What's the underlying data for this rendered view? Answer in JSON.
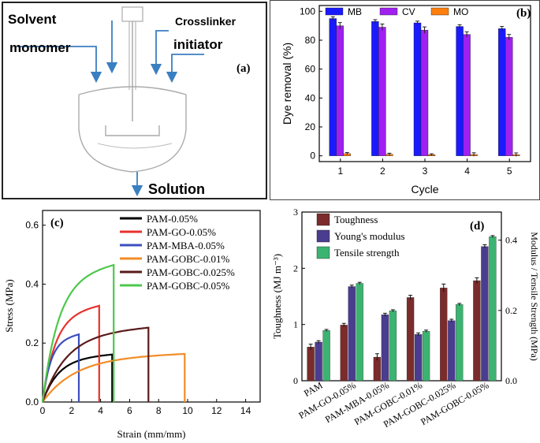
{
  "panel_a": {
    "label": "(a)",
    "solvent": "Solvent",
    "crosslinker": "Crosslinker",
    "monomer": "monomer",
    "initiator": "initiator",
    "solution": "Solution"
  },
  "chart_data": [
    {
      "panel": "(b)",
      "type": "bar",
      "title": "",
      "xlabel": "Cycle",
      "ylabel": "Dye removal (%)",
      "categories": [
        "1",
        "2",
        "3",
        "4",
        "5"
      ],
      "ylim": [
        -4,
        104
      ],
      "yticks": [
        0,
        20,
        40,
        60,
        80,
        100
      ],
      "legend_position": "top",
      "series": [
        {
          "name": "MB",
          "color": "#1a1aff",
          "values": [
            95,
            93,
            92,
            89.5,
            88
          ],
          "errors": [
            1.2,
            1.2,
            1.2,
            1.2,
            1.5
          ]
        },
        {
          "name": "CV",
          "color": "#a020f0",
          "values": [
            90,
            89,
            87,
            84,
            82
          ],
          "errors": [
            2.2,
            2.2,
            2.2,
            1.8,
            2
          ]
        },
        {
          "name": "MO",
          "color": "#ff7f0e",
          "values": [
            1.5,
            1,
            0.8,
            0.9,
            0.8
          ],
          "errors": [
            0.8,
            0.8,
            0.6,
            1.2,
            1.2
          ]
        }
      ]
    },
    {
      "panel": "(c)",
      "type": "line",
      "title": "",
      "xlabel": "Strain (mm/mm)",
      "ylabel": "Stress (MPa)",
      "xlim": [
        0,
        15
      ],
      "ylim": [
        0,
        0.65
      ],
      "xticks": [
        0,
        2,
        4,
        6,
        8,
        10,
        12,
        14
      ],
      "yticks": [
        0.0,
        0.2,
        0.4,
        0.6
      ],
      "legend_position": "top-right",
      "series": [
        {
          "name": "PAM-0.05%",
          "color": "#000000",
          "break_strain": 4.8,
          "plateau_stress": 0.163
        },
        {
          "name": "PAM-GO-0.05%",
          "color": "#e8322e",
          "break_strain": 3.9,
          "plateau_stress": 0.33
        },
        {
          "name": "PAM-MBA-0.05%",
          "color": "#3c4fbf",
          "break_strain": 2.5,
          "plateau_stress": 0.232
        },
        {
          "name": "PAM-GOBC-0.01%",
          "color": "#f28c28",
          "break_strain": 9.8,
          "plateau_stress": 0.165
        },
        {
          "name": "PAM-GOBC-0.025%",
          "color": "#5a1a1a",
          "break_strain": 7.3,
          "plateau_stress": 0.255
        },
        {
          "name": "PAM-GOBC-0.05%",
          "color": "#4cc84c",
          "break_strain": 4.9,
          "plateau_stress": 0.47
        }
      ]
    },
    {
      "panel": "(d)",
      "type": "bar",
      "title": "",
      "xlabel": "",
      "ylabel": "Toughness (MJ m⁻³)",
      "ylabel_right": "Modulus / Tensile Strength (MPa)",
      "categories": [
        "PAM",
        "PAM-GO-0.05%",
        "PAM-MBA-0.05%",
        "PAM-GOBC-0.01%",
        "PAM-GOBC-0.025%",
        "PAM-GOBC-0.05%"
      ],
      "ylim_left": [
        0,
        3
      ],
      "ylim_right": [
        0,
        0.48
      ],
      "yticks_left": [
        0,
        1,
        2,
        3
      ],
      "yticks_right": [
        0.0,
        0.2,
        0.4
      ],
      "legend_position": "top-left",
      "series": [
        {
          "name": "Toughness",
          "axis": "left",
          "color": "#7b2b2b",
          "values": [
            0.6,
            0.99,
            0.42,
            1.48,
            1.65,
            1.78
          ],
          "errors": [
            0.05,
            0.03,
            0.06,
            0.04,
            0.07,
            0.05
          ]
        },
        {
          "name": "Young's modulus",
          "axis": "right",
          "color": "#4a3d8f",
          "values": [
            0.11,
            0.268,
            0.188,
            0.132,
            0.171,
            0.382
          ],
          "errors": [
            0.004,
            0.004,
            0.004,
            0.004,
            0.004,
            0.005
          ]
        },
        {
          "name": "Tensile strength",
          "axis": "right",
          "color": "#3cb371",
          "values": [
            0.143,
            0.277,
            0.199,
            0.141,
            0.217,
            0.41
          ],
          "errors": [
            0.003,
            0.003,
            0.003,
            0.003,
            0.003,
            0.003
          ]
        }
      ]
    }
  ]
}
